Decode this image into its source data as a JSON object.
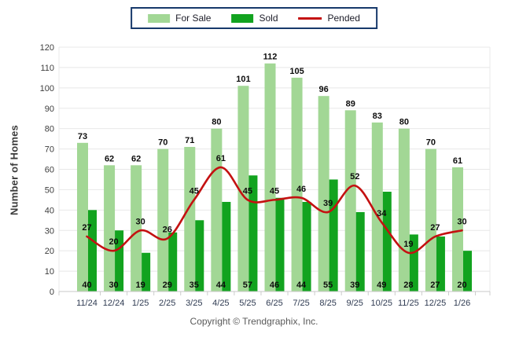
{
  "chart_data": {
    "type": "bar",
    "categories": [
      "11/24",
      "12/24",
      "1/25",
      "2/25",
      "3/25",
      "4/25",
      "5/25",
      "6/25",
      "7/25",
      "8/25",
      "9/25",
      "10/25",
      "11/25",
      "12/25",
      "1/26"
    ],
    "series": [
      {
        "name": "For Sale",
        "type": "bar",
        "color": "#a2d795",
        "values": [
          73,
          62,
          62,
          70,
          71,
          80,
          101,
          112,
          105,
          96,
          89,
          83,
          80,
          70,
          61
        ]
      },
      {
        "name": "Sold",
        "type": "bar",
        "color": "#12a31f",
        "values": [
          40,
          30,
          19,
          29,
          35,
          44,
          57,
          46,
          44,
          55,
          39,
          49,
          28,
          27,
          20
        ]
      },
      {
        "name": "Pended",
        "type": "line",
        "color": "#c41111",
        "values": [
          27,
          20,
          30,
          26,
          45,
          61,
          45,
          45,
          46,
          39,
          52,
          34,
          19,
          27,
          30
        ]
      }
    ],
    "title": "",
    "xlabel": "",
    "ylabel": "Number of Homes",
    "ylim": [
      0,
      120
    ],
    "ytick_step": 10,
    "grid": true,
    "legend_position": "top-center",
    "colors": {
      "grid": "#e8e8e8",
      "axis": "#c9c9c9",
      "tick": "#cccccc",
      "y_tick_label": "#3d3d3d",
      "x_tick_label": "#2f3b52",
      "value_label": "#0d0d0d",
      "legend_border": "#17396b",
      "legend_text": "#1c1c28"
    }
  },
  "footer": {
    "copyright": "Copyright © Trendgraphix, Inc."
  }
}
